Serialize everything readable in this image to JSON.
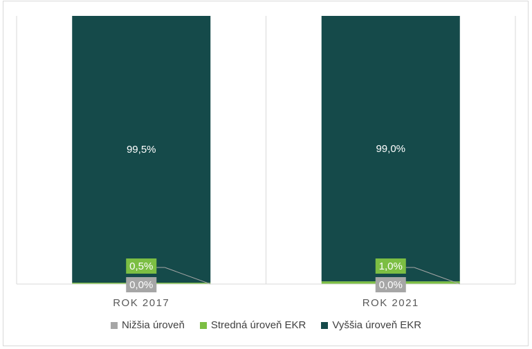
{
  "chart_data": {
    "type": "bar",
    "stacked": true,
    "categories": [
      "ROK 2017",
      "ROK 2021"
    ],
    "series": [
      {
        "name": "Nižšia úroveň",
        "values": [
          0.0,
          0.0
        ],
        "labels": [
          "0,0%",
          "0,0%"
        ],
        "color": "#a6a6a6"
      },
      {
        "name": "Stredná úroveň EKR",
        "values": [
          0.5,
          1.0
        ],
        "labels": [
          "0,5%",
          "1,0%"
        ],
        "color": "#7cbe43"
      },
      {
        "name": "Vyššia úroveň EKR",
        "values": [
          99.5,
          99.0
        ],
        "labels": [
          "99,5%",
          "99,0%"
        ],
        "color": "#154a4a"
      }
    ],
    "ylim": [
      0,
      100
    ],
    "grid": "vertical-category-separators",
    "legend": "bottom"
  }
}
